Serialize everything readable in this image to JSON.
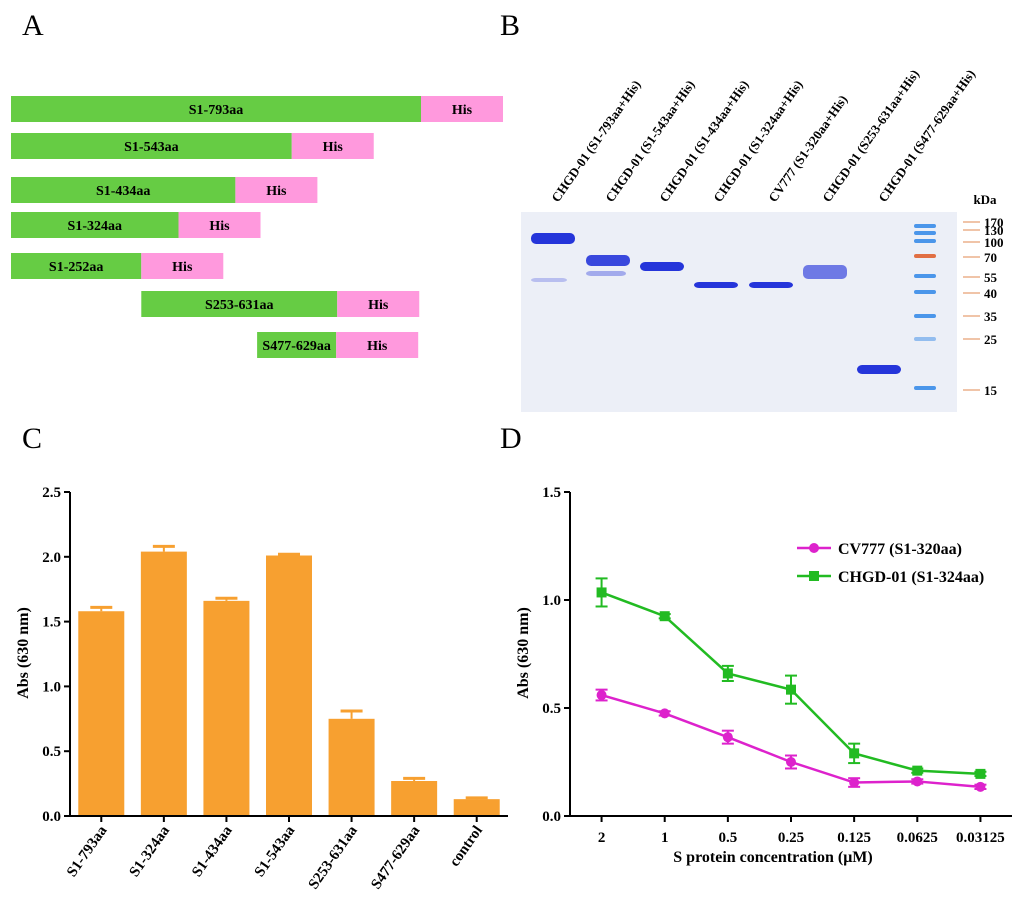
{
  "panel_labels": {
    "a": "A",
    "b": "B",
    "c": "C",
    "d": "D"
  },
  "colors": {
    "green": "#66cc44",
    "pink": "#ff99dd",
    "orange": "#f7a030",
    "magenta": "#dd22cc",
    "lime": "#22bb22",
    "gel_bg": "#eceff7",
    "band_blue": "#1a2ad8"
  },
  "constructs": [
    {
      "label": "S1-793aa",
      "tag": "His",
      "start": 1,
      "end": 793
    },
    {
      "label": "S1-543aa",
      "tag": "His",
      "start": 1,
      "end": 543
    },
    {
      "label": "S1-434aa",
      "tag": "His",
      "start": 1,
      "end": 434
    },
    {
      "label": "S1-324aa",
      "tag": "His",
      "start": 1,
      "end": 324
    },
    {
      "label": "S1-252aa",
      "tag": "His",
      "start": 1,
      "end": 252
    },
    {
      "label": "S253-631aa",
      "tag": "His",
      "start": 253,
      "end": 631
    },
    {
      "label": "S477-629aa",
      "tag": "His",
      "start": 477,
      "end": 629
    }
  ],
  "gel": {
    "lanes": [
      "CHGD-01 (S1-793aa+His)",
      "CHGD-01 (S1-543aa+His)",
      "CHGD-01 (S1-434aa+His)",
      "CHGD-01 (S1-324aa+His)",
      "CV777 (S1-320aa+His)",
      "CHGD-01 (S253-631aa+His)",
      "CHGD-01 (S477-629aa+His)"
    ],
    "marker_unit": "kDa",
    "markers": [
      "170",
      "130",
      "100",
      "70",
      "55",
      "40",
      "35",
      "25",
      "15"
    ]
  },
  "chart_data": [
    {
      "type": "bar",
      "title": "",
      "xlabel": "",
      "ylabel": "Abs (630 nm)",
      "ylim": [
        0,
        2.5
      ],
      "yticks": [
        "0.0",
        "0.5",
        "1.0",
        "1.5",
        "2.0",
        "2.5"
      ],
      "categories": [
        "S1-793aa",
        "S1-324aa",
        "S1-434aa",
        "S1-543aa",
        "S253-631aa",
        "S477-629aa",
        "control"
      ],
      "values": [
        1.58,
        2.04,
        1.66,
        2.01,
        0.75,
        0.27,
        0.13
      ],
      "errors": [
        0.03,
        0.04,
        0.02,
        0.01,
        0.06,
        0.02,
        0.01
      ]
    },
    {
      "type": "line",
      "title": "",
      "xlabel": "S protein concentration (μM)",
      "ylabel": "Abs (630 nm)",
      "ylim": [
        0,
        1.5
      ],
      "yticks": [
        "0.0",
        "0.5",
        "1.0",
        "1.5"
      ],
      "x": [
        "2",
        "1",
        "0.5",
        "0.25",
        "0.125",
        "0.0625",
        "0.03125"
      ],
      "legend_position": "top-right",
      "series": [
        {
          "name": "CV777 (S1-320aa)",
          "marker": "circle",
          "values": [
            0.56,
            0.475,
            0.365,
            0.25,
            0.155,
            0.16,
            0.135
          ],
          "errors": [
            0.025,
            0.01,
            0.03,
            0.03,
            0.02,
            0.01,
            0.01
          ]
        },
        {
          "name": "CHGD-01 (S1-324aa)",
          "marker": "square",
          "values": [
            1.035,
            0.925,
            0.66,
            0.585,
            0.29,
            0.21,
            0.195
          ],
          "errors": [
            0.065,
            0.01,
            0.035,
            0.065,
            0.045,
            0.01,
            0.01
          ]
        }
      ]
    }
  ]
}
